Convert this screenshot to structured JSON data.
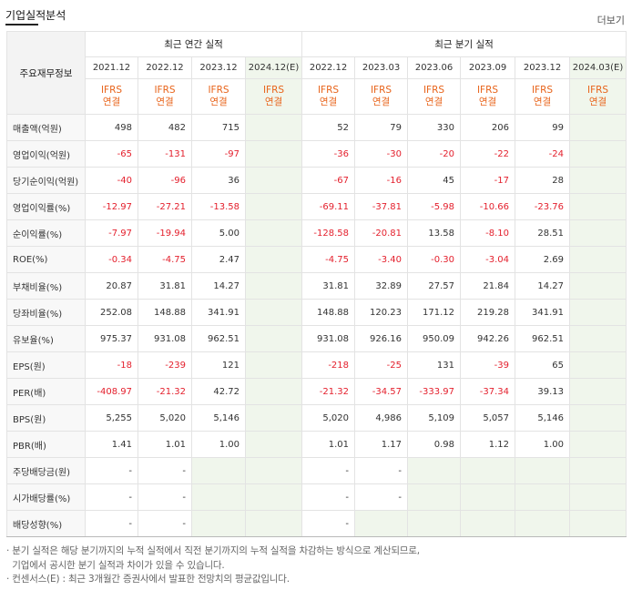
{
  "header": {
    "title": "기업실적분석",
    "more": "더보기"
  },
  "table": {
    "corner_label": "주요재무정보",
    "annual_group": "최근 연간 실적",
    "quarter_group": "최근 분기 실적",
    "annual_periods": [
      "2021.12",
      "2022.12",
      "2023.12",
      "2024.12(E)"
    ],
    "quarter_periods": [
      "2022.12",
      "2023.03",
      "2023.06",
      "2023.09",
      "2023.12",
      "2024.03(E)"
    ],
    "ifrs_line1": "IFRS",
    "ifrs_line2": "연결",
    "rows": [
      {
        "label": "매출액(억원)",
        "annual": [
          "498",
          "482",
          "715",
          ""
        ],
        "quarter": [
          "52",
          "79",
          "330",
          "206",
          "99",
          ""
        ]
      },
      {
        "label": "영업이익(억원)",
        "annual": [
          "-65",
          "-131",
          "-97",
          ""
        ],
        "quarter": [
          "-36",
          "-30",
          "-20",
          "-22",
          "-24",
          ""
        ]
      },
      {
        "label": "당기순이익(억원)",
        "annual": [
          "-40",
          "-96",
          "36",
          ""
        ],
        "quarter": [
          "-67",
          "-16",
          "45",
          "-17",
          "28",
          ""
        ]
      },
      {
        "label": "영업이익률(%)",
        "annual": [
          "-12.97",
          "-27.21",
          "-13.58",
          ""
        ],
        "quarter": [
          "-69.11",
          "-37.81",
          "-5.98",
          "-10.66",
          "-23.76",
          ""
        ]
      },
      {
        "label": "순이익률(%)",
        "annual": [
          "-7.97",
          "-19.94",
          "5.00",
          ""
        ],
        "quarter": [
          "-128.58",
          "-20.81",
          "13.58",
          "-8.10",
          "28.51",
          ""
        ]
      },
      {
        "label": "ROE(%)",
        "annual": [
          "-0.34",
          "-4.75",
          "2.47",
          ""
        ],
        "quarter": [
          "-4.75",
          "-3.40",
          "-0.30",
          "-3.04",
          "2.69",
          ""
        ]
      },
      {
        "label": "부채비율(%)",
        "annual": [
          "20.87",
          "31.81",
          "14.27",
          ""
        ],
        "quarter": [
          "31.81",
          "32.89",
          "27.57",
          "21.84",
          "14.27",
          ""
        ]
      },
      {
        "label": "당좌비율(%)",
        "annual": [
          "252.08",
          "148.88",
          "341.91",
          ""
        ],
        "quarter": [
          "148.88",
          "120.23",
          "171.12",
          "219.28",
          "341.91",
          ""
        ]
      },
      {
        "label": "유보율(%)",
        "annual": [
          "975.37",
          "931.08",
          "962.51",
          ""
        ],
        "quarter": [
          "931.08",
          "926.16",
          "950.09",
          "942.26",
          "962.51",
          ""
        ]
      },
      {
        "label": "EPS(원)",
        "annual": [
          "-18",
          "-239",
          "121",
          ""
        ],
        "quarter": [
          "-218",
          "-25",
          "131",
          "-39",
          "65",
          ""
        ]
      },
      {
        "label": "PER(배)",
        "annual": [
          "-408.97",
          "-21.32",
          "42.72",
          ""
        ],
        "quarter": [
          "-21.32",
          "-34.57",
          "-333.97",
          "-37.34",
          "39.13",
          ""
        ]
      },
      {
        "label": "BPS(원)",
        "annual": [
          "5,255",
          "5,020",
          "5,146",
          ""
        ],
        "quarter": [
          "5,020",
          "4,986",
          "5,109",
          "5,057",
          "5,146",
          ""
        ]
      },
      {
        "label": "PBR(배)",
        "annual": [
          "1.41",
          "1.01",
          "1.00",
          ""
        ],
        "quarter": [
          "1.01",
          "1.17",
          "0.98",
          "1.12",
          "1.00",
          ""
        ]
      },
      {
        "label": "주당배당금(원)",
        "annual": [
          "-",
          "-",
          "",
          ""
        ],
        "quarter": [
          "-",
          "-",
          "",
          "",
          "",
          ""
        ]
      },
      {
        "label": "시가배당률(%)",
        "annual": [
          "-",
          "-",
          "",
          ""
        ],
        "quarter": [
          "-",
          "-",
          "",
          "",
          "",
          ""
        ]
      },
      {
        "label": "배당성향(%)",
        "annual": [
          "-",
          "-",
          "",
          ""
        ],
        "quarter": [
          "-",
          "",
          "",
          "",
          "",
          ""
        ]
      }
    ]
  },
  "footnotes": [
    "· 분기 실적은 해당 분기까지의 누적 실적에서 직전 분기까지의 누적 실적을 차감하는 방식으로 계산되므로,",
    "  기업에서 공시한 분기 실적과 차이가 있을 수 있습니다.",
    "· 컨센서스(E) : 최근 3개월간 증권사에서 발표한 전망치의 평균값입니다."
  ],
  "colors": {
    "negative": "#e4202d",
    "ifrs": "#e8641b",
    "estimate_bg": "#f0f6ec",
    "label_bg": "#f8f8f8"
  }
}
